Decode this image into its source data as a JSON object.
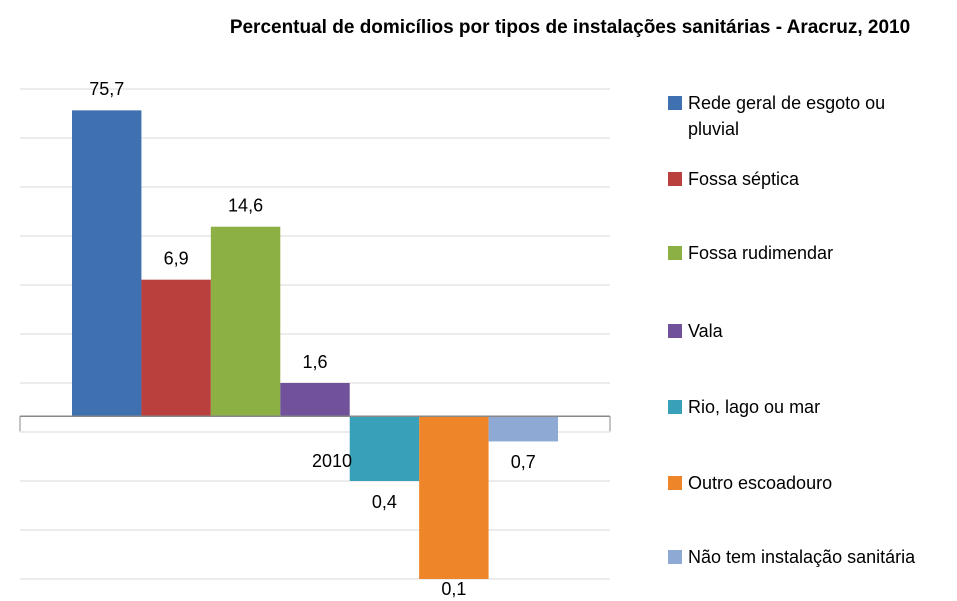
{
  "chart_data": {
    "type": "bar",
    "title": "Percentual de domicílios por tipos de instalações sanitárias - Aracruz, 2010",
    "categories": [
      "2010"
    ],
    "series": [
      {
        "name": "Rede geral de esgoto ou pluvial",
        "color": "#3f70b0",
        "values": [
          75.7
        ],
        "value_labels": [
          "75,7"
        ]
      },
      {
        "name": "Fossa séptica",
        "color": "#b9403c",
        "values": [
          6.9
        ],
        "value_labels": [
          "6,9"
        ]
      },
      {
        "name": "Fossa rudimendar",
        "color": "#8cb043",
        "values": [
          14.6
        ],
        "value_labels": [
          "14,6"
        ]
      },
      {
        "name": "Vala",
        "color": "#70519a",
        "values": [
          1.6
        ],
        "value_labels": [
          "1,6"
        ]
      },
      {
        "name": "Rio, lago ou mar",
        "color": "#38a0b9",
        "values": [
          0.4
        ],
        "value_labels": [
          "0,4"
        ]
      },
      {
        "name": "Outro escoadouro",
        "color": "#ee8528",
        "values": [
          0.1
        ],
        "value_labels": [
          "0,1"
        ]
      },
      {
        "name": "Não tem instalação sanitária",
        "color": "#8ea9d3",
        "values": [
          0.7
        ],
        "value_labels": [
          "0,7"
        ]
      }
    ],
    "log_scale": true,
    "axis_crossing": 1,
    "ylim": [
      0.1,
      102.4
    ],
    "yticks": [
      0.1,
      0.2,
      0.4,
      0.8,
      1.6,
      3.2,
      6.4,
      12.8,
      25.6,
      51.2,
      102.4
    ],
    "grid": true,
    "legend": "right"
  }
}
